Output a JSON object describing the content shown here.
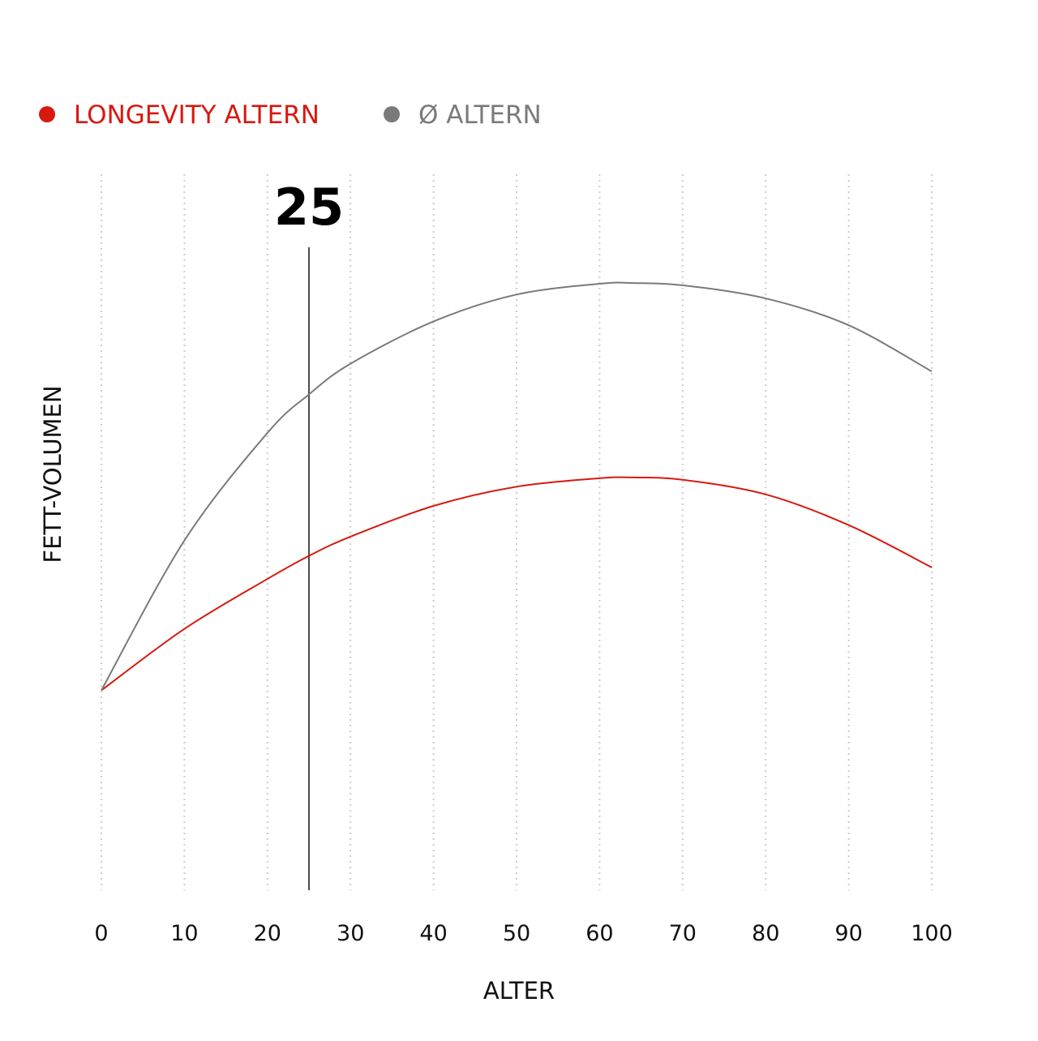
{
  "chart_data": {
    "type": "line",
    "x": [
      0,
      10,
      20,
      25,
      30,
      40,
      50,
      60,
      64,
      70,
      80,
      90,
      100
    ],
    "x_ticks": [
      "0",
      "10",
      "20",
      "30",
      "40",
      "50",
      "60",
      "70",
      "80",
      "90",
      "100"
    ],
    "xlim": [
      0,
      100
    ],
    "xlabel": "ALTER",
    "ylabel": "FETT-VOLUMEN",
    "ylim": [
      0,
      100
    ],
    "grid": "vertical dotted",
    "legend_position": "top-left",
    "marker": {
      "x": 25,
      "label": "25"
    },
    "series": [
      {
        "name": "LONGEVITY ALTERN",
        "color": "#d7190f",
        "values": [
          26,
          34,
          40.5,
          43.5,
          46,
          50,
          52.5,
          53.6,
          53.7,
          53.4,
          51.5,
          47.5,
          42
        ]
      },
      {
        "name": "Ø ALTERN",
        "color": "#7a7a7a",
        "values": [
          26,
          45.5,
          59.5,
          64.5,
          68.5,
          74,
          77.5,
          78.9,
          79,
          78.7,
          77,
          73.5,
          67.5
        ]
      }
    ]
  },
  "colors": {
    "grid": "#cccccc",
    "marker_line": "#111111",
    "text": "#111111"
  }
}
